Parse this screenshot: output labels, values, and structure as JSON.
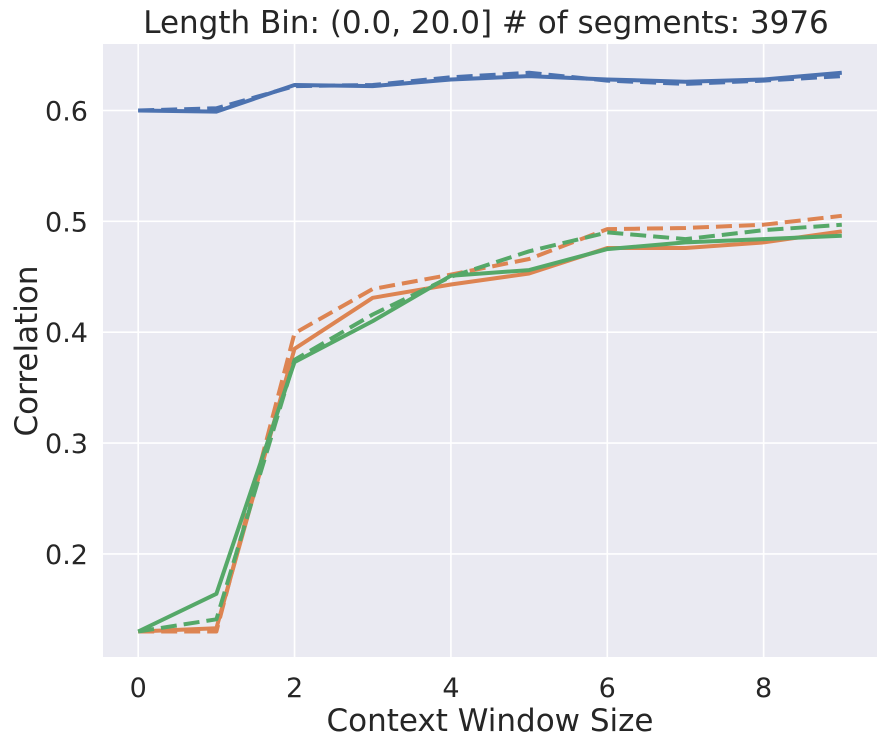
{
  "chart_data": {
    "type": "line",
    "title": "Length Bin: (0.0, 20.0] # of segments: 3976",
    "xlabel": "Context Window Size",
    "ylabel": "Correlation",
    "xlim": [
      -0.45,
      9.45
    ],
    "ylim": [
      0.107,
      0.66
    ],
    "xticks": [
      0,
      2,
      4,
      6,
      8
    ],
    "yticks": [
      0.2,
      0.3,
      0.4,
      0.5,
      0.6
    ],
    "grid": true,
    "legend": "none",
    "background": "#eaeaf2",
    "x": [
      0,
      1,
      2,
      3,
      4,
      5,
      6,
      7,
      8,
      9
    ],
    "series": [
      {
        "color": "#4c72b0",
        "style": "dashed",
        "values": [
          0.6,
          0.602,
          0.622,
          0.623,
          0.63,
          0.634,
          0.627,
          0.624,
          0.627,
          0.631
        ]
      },
      {
        "color": "#4c72b0",
        "style": "solid",
        "values": [
          0.6,
          0.599,
          0.623,
          0.622,
          0.628,
          0.631,
          0.628,
          0.626,
          0.628,
          0.634
        ]
      },
      {
        "color": "#dd8452",
        "style": "dashed",
        "values": [
          0.13,
          0.13,
          0.399,
          0.439,
          0.452,
          0.466,
          0.493,
          0.494,
          0.497,
          0.505
        ]
      },
      {
        "color": "#dd8452",
        "style": "solid",
        "values": [
          0.13,
          0.133,
          0.385,
          0.431,
          0.443,
          0.453,
          0.476,
          0.476,
          0.481,
          0.491
        ]
      },
      {
        "color": "#55a868",
        "style": "dashed",
        "values": [
          0.13,
          0.141,
          0.375,
          0.416,
          0.45,
          0.473,
          0.49,
          0.484,
          0.492,
          0.497
        ]
      },
      {
        "color": "#55a868",
        "style": "solid",
        "values": [
          0.13,
          0.164,
          0.373,
          0.41,
          0.451,
          0.456,
          0.475,
          0.481,
          0.484,
          0.487
        ]
      }
    ]
  }
}
